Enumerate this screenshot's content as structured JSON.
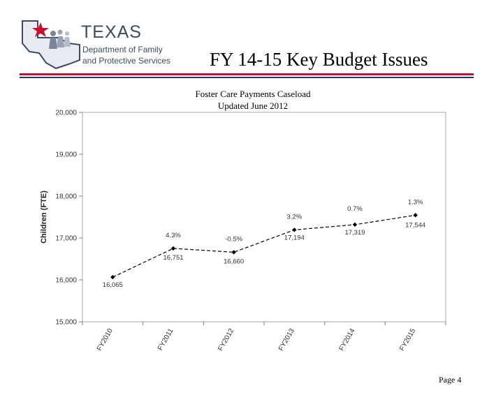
{
  "header": {
    "logo_title": "TEXAS",
    "logo_subtitle_1": "Department of Family",
    "logo_subtitle_2": "and Protective Services",
    "slide_title": "FY 14-15 Key Budget Issues"
  },
  "footer": {
    "page_label": "Page 4"
  },
  "colors": {
    "accent_red": "#c8102e",
    "accent_blue": "#1f3a6b",
    "logo_text": "#3e4a63",
    "series_line": "#000000"
  },
  "chart_data": {
    "type": "line",
    "title": "Foster Care Payments Caseload",
    "subtitle": "Updated June 2012",
    "xlabel": "",
    "ylabel": "Children (FTE)",
    "categories": [
      "FY2010",
      "FY2011",
      "FY2012",
      "FY2013",
      "FY2014",
      "FY2015"
    ],
    "series": [
      {
        "values": [
          16065,
          16751,
          16660,
          17194,
          17319,
          17544
        ],
        "value_labels": [
          "16,065",
          "16,751",
          "16,660",
          "17,194",
          "17,319",
          "17,544"
        ],
        "growth_labels": [
          "",
          "4.3%",
          "-0.5%",
          "3.2%",
          "0.7%",
          "1.3%"
        ]
      }
    ],
    "ylim": [
      15000,
      20000
    ],
    "yticks": [
      15000,
      16000,
      17000,
      18000,
      19000,
      20000
    ],
    "ytick_labels": [
      "15,000",
      "16,000",
      "17,000",
      "18,000",
      "19,000",
      "20,000"
    ],
    "grid": false,
    "line_style": "dashed",
    "legend": "none"
  }
}
